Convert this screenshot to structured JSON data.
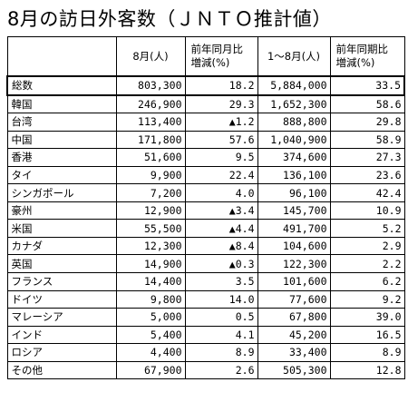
{
  "title": "8月の訪日外客数（ＪＮＴＯ推計値）",
  "headers": {
    "country": "",
    "aug_visitors": "8月(人)",
    "aug_change_line1": "前年同月比",
    "aug_change_line2": "増減(%)",
    "ytd_visitors": "1～8月(人)",
    "ytd_change_line1": "前年同期比",
    "ytd_change_line2": "増減(%)"
  },
  "rows": [
    {
      "country": "総数",
      "aug": "803,300",
      "aug_chg": "18.2",
      "ytd": "5,884,000",
      "ytd_chg": "33.5"
    },
    {
      "country": "韓国",
      "aug": "246,900",
      "aug_chg": "29.3",
      "ytd": "1,652,300",
      "ytd_chg": "58.6"
    },
    {
      "country": "台湾",
      "aug": "113,400",
      "aug_chg": "▲1.2",
      "ytd": "888,800",
      "ytd_chg": "29.8"
    },
    {
      "country": "中国",
      "aug": "171,800",
      "aug_chg": "57.6",
      "ytd": "1,040,900",
      "ytd_chg": "58.9"
    },
    {
      "country": "香港",
      "aug": "51,600",
      "aug_chg": "9.5",
      "ytd": "374,600",
      "ytd_chg": "27.3"
    },
    {
      "country": "タイ",
      "aug": "9,900",
      "aug_chg": "22.4",
      "ytd": "136,100",
      "ytd_chg": "23.6"
    },
    {
      "country": "シンガポール",
      "aug": "7,200",
      "aug_chg": "4.0",
      "ytd": "96,100",
      "ytd_chg": "42.4"
    },
    {
      "country": "豪州",
      "aug": "12,900",
      "aug_chg": "▲3.4",
      "ytd": "145,700",
      "ytd_chg": "10.9"
    },
    {
      "country": "米国",
      "aug": "55,500",
      "aug_chg": "▲4.4",
      "ytd": "491,700",
      "ytd_chg": "5.2"
    },
    {
      "country": "カナダ",
      "aug": "12,300",
      "aug_chg": "▲8.4",
      "ytd": "104,600",
      "ytd_chg": "2.9"
    },
    {
      "country": "英国",
      "aug": "14,900",
      "aug_chg": "▲0.3",
      "ytd": "122,300",
      "ytd_chg": "2.2"
    },
    {
      "country": "フランス",
      "aug": "14,400",
      "aug_chg": "3.5",
      "ytd": "101,600",
      "ytd_chg": "6.2"
    },
    {
      "country": "ドイツ",
      "aug": "9,800",
      "aug_chg": "14.0",
      "ytd": "77,600",
      "ytd_chg": "9.2"
    },
    {
      "country": "マレーシア",
      "aug": "5,000",
      "aug_chg": "0.5",
      "ytd": "67,800",
      "ytd_chg": "39.0"
    },
    {
      "country": "インド",
      "aug": "5,400",
      "aug_chg": "4.1",
      "ytd": "45,200",
      "ytd_chg": "16.5"
    },
    {
      "country": "ロシア",
      "aug": "4,400",
      "aug_chg": "8.9",
      "ytd": "33,400",
      "ytd_chg": "8.9"
    },
    {
      "country": "その他",
      "aug": "67,900",
      "aug_chg": "2.6",
      "ytd": "505,300",
      "ytd_chg": "12.8"
    }
  ]
}
